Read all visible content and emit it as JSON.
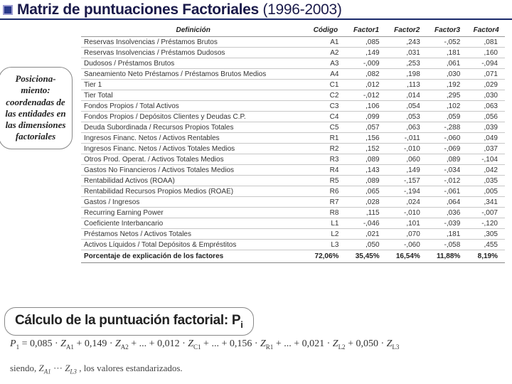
{
  "title": {
    "main": "Matriz de puntuaciones Factoriales",
    "paren": "(1996-2003)"
  },
  "side_bubble": "Posiciona-miento: coordenadas de las entidades en las dimensiones factoriales",
  "table": {
    "headers": [
      "Definición",
      "Código",
      "Factor1",
      "Factor2",
      "Factor3",
      "Factor4"
    ],
    "rows": [
      [
        "Reservas Insolvencias / Préstamos Brutos",
        "A1",
        ",085",
        ",243",
        "-,052",
        ",081"
      ],
      [
        "Reservas Insolvencias / Préstamos Dudosos",
        "A2",
        ",149",
        ",031",
        ",181",
        ",160"
      ],
      [
        "Dudosos / Préstamos Brutos",
        "A3",
        "-,009",
        ",253",
        ",061",
        "-,094"
      ],
      [
        "Saneamiento Neto Préstamos / Préstamos Brutos Medios",
        "A4",
        ",082",
        ",198",
        ",030",
        ",071"
      ],
      [
        "Tier 1",
        "C1",
        ",012",
        ",113",
        ",192",
        ",029"
      ],
      [
        "Tier Total",
        "C2",
        "-,012",
        ",014",
        ",295",
        ",030"
      ],
      [
        "Fondos Propios / Total Activos",
        "C3",
        ",106",
        ",054",
        ",102",
        ",063"
      ],
      [
        "Fondos Propios / Depósitos Clientes y Deudas C.P.",
        "C4",
        ",099",
        ",053",
        ",059",
        ",056"
      ],
      [
        "Deuda Subordinada / Recursos Propios Totales",
        "C5",
        ",057",
        ",063",
        "-,288",
        ",039"
      ],
      [
        "Ingresos Financ. Netos / Activos Rentables",
        "R1",
        ",156",
        "-,011",
        "-,060",
        ",049"
      ],
      [
        "Ingresos Financ. Netos / Activos Totales Medios",
        "R2",
        ",152",
        "-,010",
        "-,069",
        ",037"
      ],
      [
        "Otros Prod. Operat. / Activos Totales Medios",
        "R3",
        ",089",
        ",060",
        ",089",
        "-,104"
      ],
      [
        "Gastos No Financieros / Activos Totales Medios",
        "R4",
        ",143",
        ",149",
        "-,034",
        ",042"
      ],
      [
        "Rentabilidad Activos (ROAA)",
        "R5",
        ",089",
        "-,157",
        "-,012",
        ",035"
      ],
      [
        "Rentabilidad Recursos Propios Medios (ROAE)",
        "R6",
        ",065",
        "-,194",
        "-,061",
        ",005"
      ],
      [
        "Gastos / Ingresos",
        "R7",
        ",028",
        ",024",
        ",064",
        ",341"
      ],
      [
        "Recurring Earning Power",
        "R8",
        ",115",
        "-,010",
        ",036",
        "-,007"
      ],
      [
        "Coeficiente Interbancario",
        "L1",
        "-,046",
        ",101",
        "-,039",
        "-,120"
      ],
      [
        "Préstamos Netos / Activos Totales",
        "L2",
        ",021",
        ",070",
        ",181",
        ",305"
      ],
      [
        "Activos Líquidos / Total Depósitos & Empréstitos",
        "L3",
        ",050",
        "-,060",
        "-,058",
        ",455"
      ],
      [
        "Porcentaje de explicación de los factores",
        "72,06%",
        "35,45%",
        "16,54%",
        "11,88%",
        "8,19%"
      ]
    ]
  },
  "calc_bubble": {
    "text": "Cálculo de la puntuación factorial: P",
    "sub": "i"
  },
  "formula": {
    "lhs": "P",
    "lhs_sub": "1",
    "terms": [
      {
        "coef": "0,085",
        "var": "Z",
        "sub": "A1"
      },
      {
        "coef": "0,149",
        "var": "Z",
        "sub": "A2"
      },
      {
        "coef": "0,012",
        "var": "Z",
        "sub": "C1"
      },
      {
        "coef": "0,156",
        "var": "Z",
        "sub": "R1"
      },
      {
        "coef": "0,021",
        "var": "Z",
        "sub": "L2"
      },
      {
        "coef": "0,050",
        "var": "Z",
        "sub": "L3"
      }
    ],
    "ellipsis": "+ ... +",
    "between": " + "
  },
  "siendo": {
    "pre": "siendo, ",
    "z1": "Z",
    "z1s": "A1",
    "dots": " ··· ",
    "z2": "Z",
    "z2s": "L3",
    "post": " , los valores estandarizados."
  }
}
